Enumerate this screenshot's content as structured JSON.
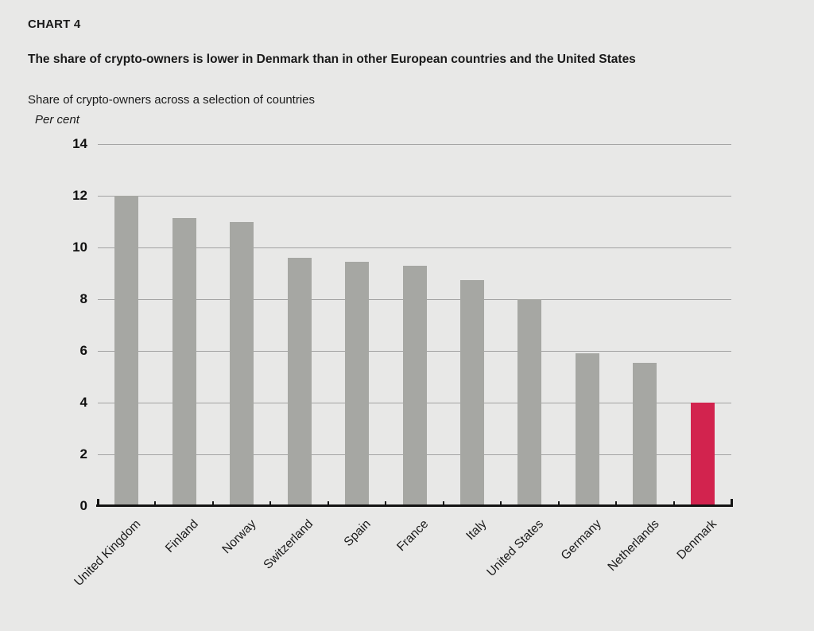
{
  "header": {
    "kicker": "CHART 4",
    "title": "The share of crypto-owners is lower in Denmark than in other European countries and the United States",
    "subtitle": "Share of crypto-owners across a selection of countries",
    "unit_label": "Per cent"
  },
  "chart_data": {
    "type": "bar",
    "title": "Share of crypto-owners across a selection of countries",
    "ylabel": "Per cent",
    "xlabel": "",
    "categories": [
      "United Kingdom",
      "Finland",
      "Norway",
      "Switzerland",
      "Spain",
      "France",
      "Italy",
      "United States",
      "Germany",
      "Netherlands",
      "Denmark"
    ],
    "values": [
      12.0,
      11.15,
      11.0,
      9.6,
      9.45,
      9.3,
      8.75,
      8.0,
      5.9,
      5.55,
      4.0
    ],
    "highlight_category": "Denmark",
    "bar_color": "#A6A7A3",
    "highlight_color": "#D2234E",
    "background_color": "#E8E8E7",
    "gridline_color": "#A3A3A3",
    "axis_color": "#141414",
    "ylim": [
      0,
      14
    ],
    "yticks": [
      0,
      2,
      4,
      6,
      8,
      10,
      12,
      14
    ],
    "grid": "horizontal",
    "legend": "none",
    "x_label_rotation_deg": 45
  }
}
